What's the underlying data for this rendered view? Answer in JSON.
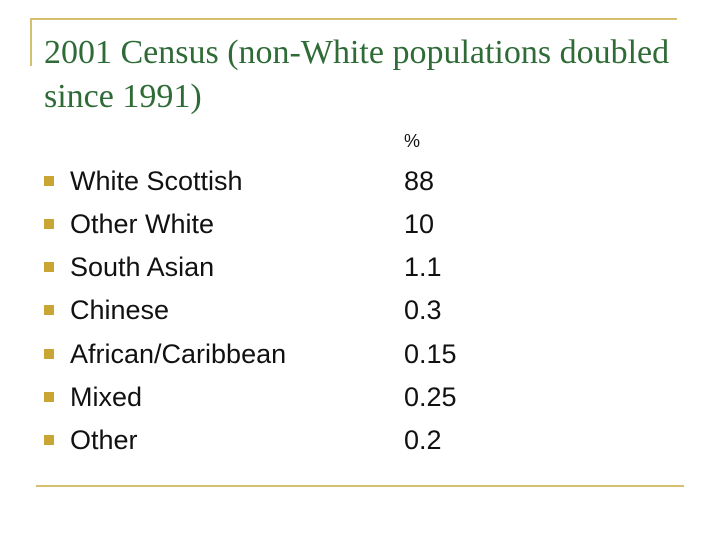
{
  "slide": {
    "title": "2001 Census (non-White populations doubled since 1991)",
    "column_header": "%",
    "rows": [
      {
        "label": "White Scottish",
        "value": "88"
      },
      {
        "label": "Other White",
        "value": "10"
      },
      {
        "label": "South Asian",
        "value": "1.1"
      },
      {
        "label": "Chinese",
        "value": "0.3"
      },
      {
        "label": "African/Caribbean",
        "value": "0.15"
      },
      {
        "label": "Mixed",
        "value": "0.25"
      },
      {
        "label": "Other",
        "value": "0.2"
      }
    ]
  },
  "colors": {
    "title": "#2f6b36",
    "accent_rule": "#d4c070",
    "bullet": "#c9a634",
    "text": "#111111"
  }
}
